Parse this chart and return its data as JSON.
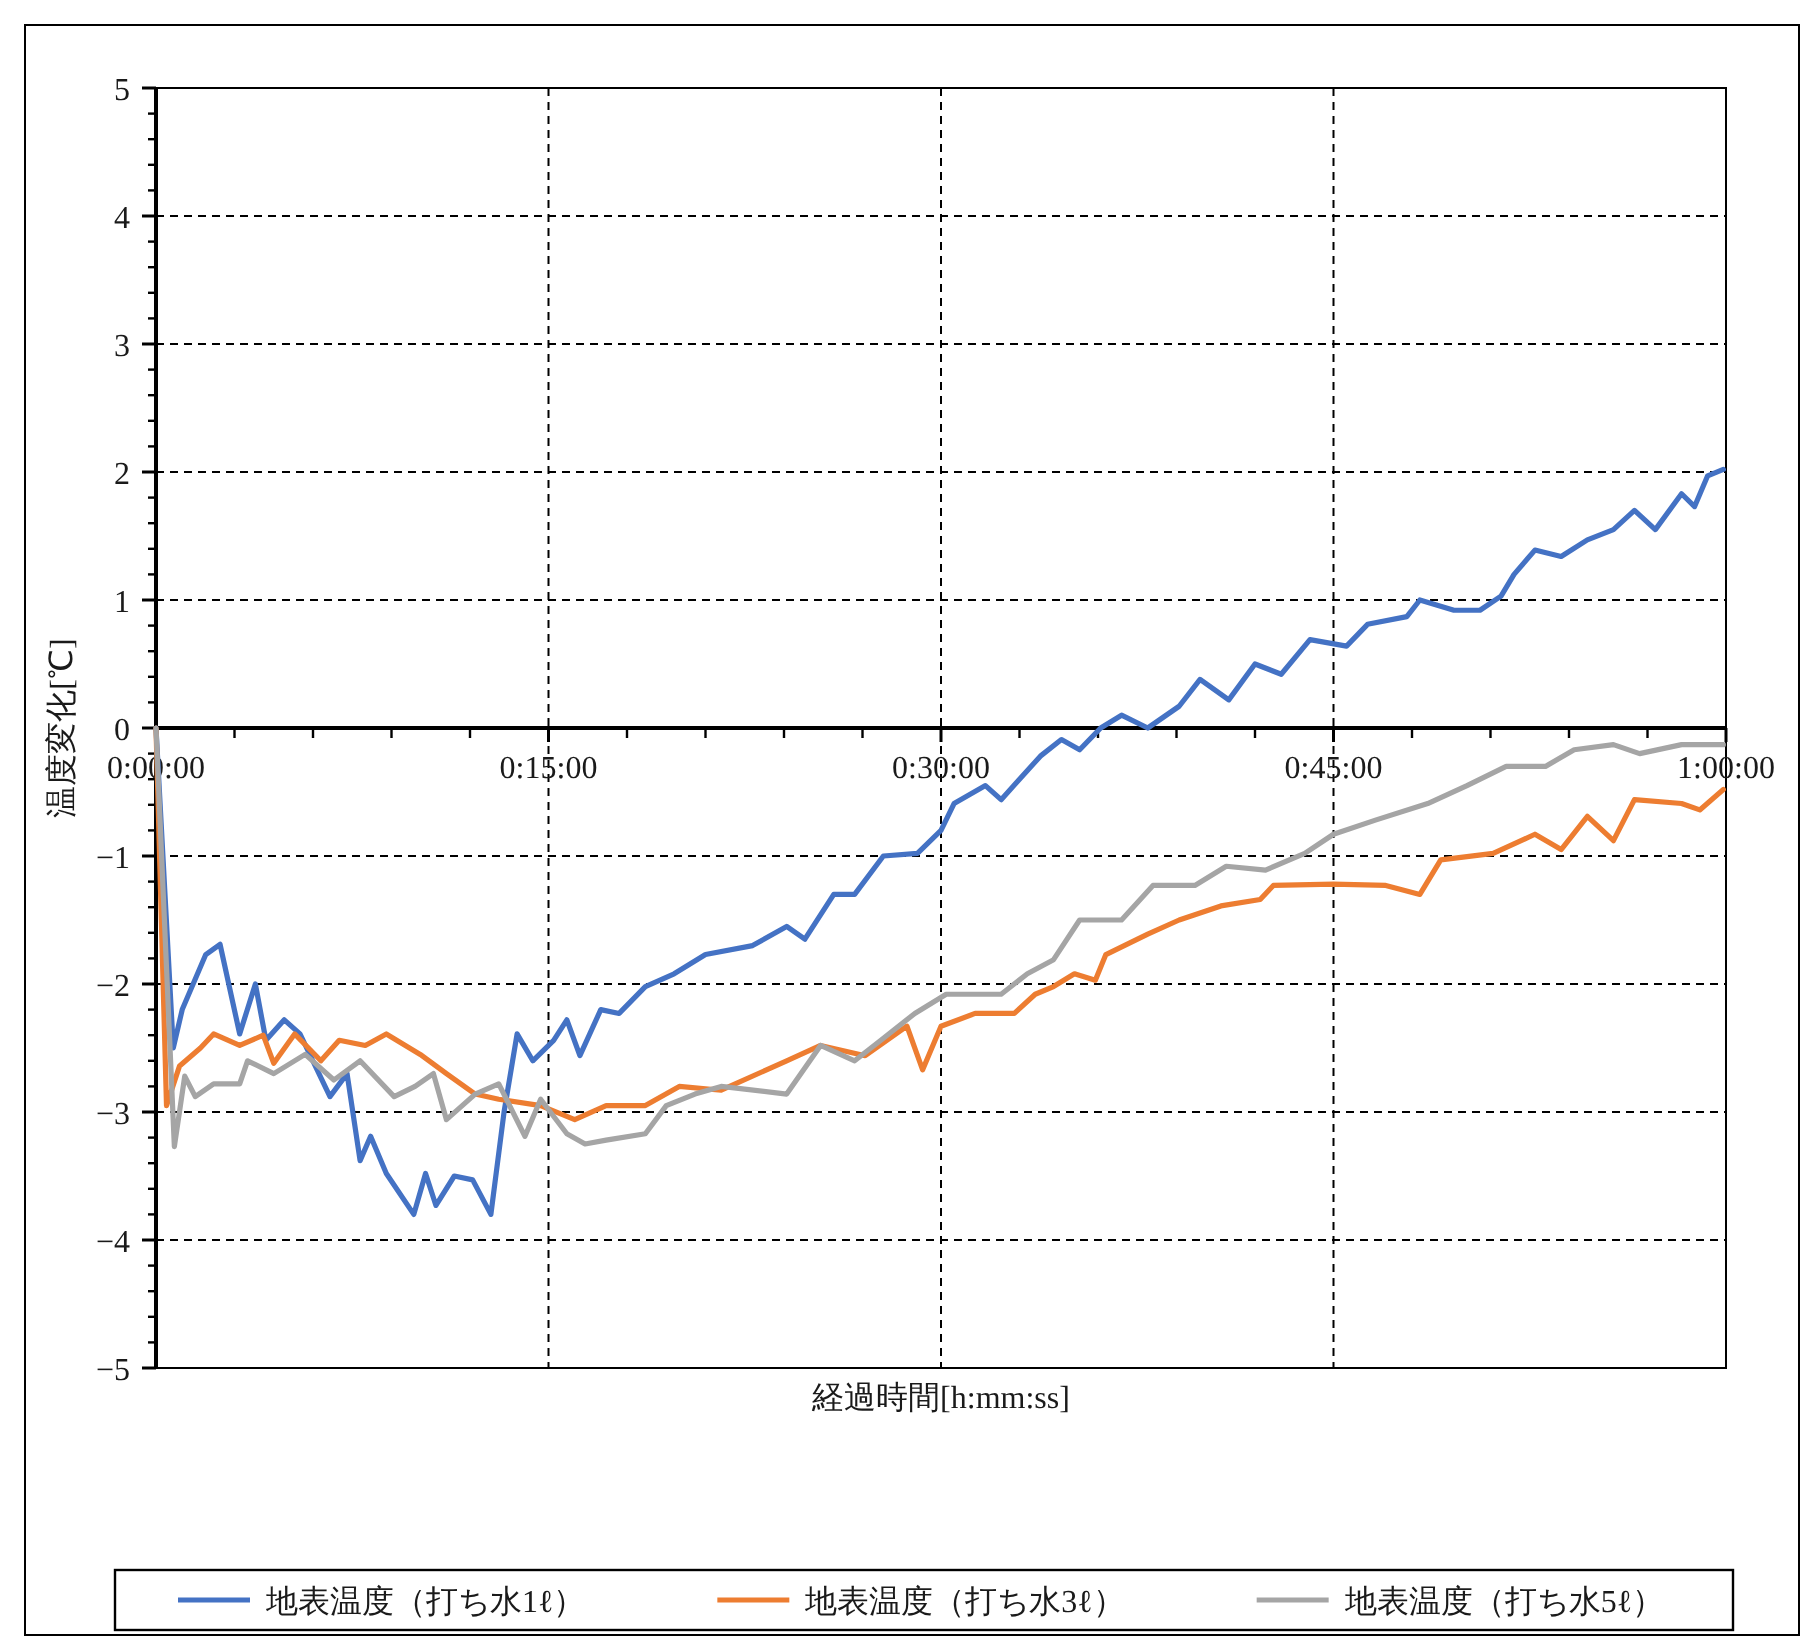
{
  "chart_data": {
    "type": "line",
    "xlabel": "経過時間[h:mm:ss]",
    "ylabel": "温度変化[℃]",
    "xlim": [
      0,
      1
    ],
    "ylim": [
      -5,
      5
    ],
    "xticks": [
      {
        "value": 0,
        "label": "0:00:00"
      },
      {
        "value": 0.25,
        "label": "0:15:00"
      },
      {
        "value": 0.5,
        "label": "0:30:00"
      },
      {
        "value": 0.75,
        "label": "0:45:00"
      },
      {
        "value": 1,
        "label": "1:00:00"
      }
    ],
    "yticks": [
      -5,
      -4,
      -3,
      -2,
      -1,
      0,
      1,
      2,
      3,
      4,
      5
    ],
    "grid": true,
    "legend": "bottom",
    "series": [
      {
        "name": "地表温度（打ち水1ℓ）",
        "color": "#4472c4",
        "x": [
          0,
          0.011,
          0.0167,
          0.0317,
          0.0408,
          0.0533,
          0.0633,
          0.07,
          0.0817,
          0.0917,
          0.1108,
          0.1217,
          0.13,
          0.1367,
          0.1467,
          0.1642,
          0.1717,
          0.1783,
          0.19,
          0.2017,
          0.2133,
          0.2217,
          0.23,
          0.24,
          0.2533,
          0.2617,
          0.27,
          0.2833,
          0.295,
          0.3117,
          0.33,
          0.35,
          0.38,
          0.4017,
          0.4133,
          0.4317,
          0.445,
          0.4633,
          0.485,
          0.5,
          0.5083,
          0.5283,
          0.5383,
          0.5633,
          0.5767,
          0.5883,
          0.6017,
          0.615,
          0.6317,
          0.6517,
          0.665,
          0.6833,
          0.7,
          0.7167,
          0.735,
          0.7583,
          0.7717,
          0.7967,
          0.805,
          0.8267,
          0.8433,
          0.8567,
          0.865,
          0.8783,
          0.895,
          0.9117,
          0.9283,
          0.9417,
          0.955,
          0.9717,
          0.98,
          0.9883,
          0.9983
        ],
        "values": [
          0,
          -2.5,
          -2.2,
          -1.77,
          -1.69,
          -2.39,
          -2.0,
          -2.44,
          -2.28,
          -2.39,
          -2.88,
          -2.7,
          -3.38,
          -3.19,
          -3.48,
          -3.8,
          -3.48,
          -3.73,
          -3.5,
          -3.53,
          -3.8,
          -3.0,
          -2.39,
          -2.6,
          -2.44,
          -2.28,
          -2.56,
          -2.2,
          -2.23,
          -2.02,
          -1.92,
          -1.77,
          -1.7,
          -1.55,
          -1.65,
          -1.3,
          -1.3,
          -1.0,
          -0.98,
          -0.8,
          -0.59,
          -0.45,
          -0.56,
          -0.22,
          -0.09,
          -0.17,
          0,
          0.1,
          0,
          0.17,
          0.38,
          0.22,
          0.5,
          0.42,
          0.69,
          0.64,
          0.81,
          0.87,
          1.0,
          0.92,
          0.92,
          1.03,
          1.2,
          1.39,
          1.34,
          1.47,
          1.55,
          1.7,
          1.55,
          1.83,
          1.73,
          1.97,
          2.02
        ]
      },
      {
        "name": "地表温度（打ち水3ℓ）",
        "color": "#ed7d31",
        "x": [
          0,
          0.0067,
          0.015,
          0.0283,
          0.0367,
          0.0533,
          0.0683,
          0.075,
          0.0883,
          0.105,
          0.1167,
          0.1333,
          0.1467,
          0.1683,
          0.185,
          0.2033,
          0.2183,
          0.245,
          0.2667,
          0.2867,
          0.3117,
          0.3333,
          0.36,
          0.4017,
          0.4233,
          0.4517,
          0.4783,
          0.4883,
          0.5,
          0.5217,
          0.5467,
          0.56,
          0.5717,
          0.585,
          0.5983,
          0.605,
          0.6317,
          0.6517,
          0.6783,
          0.7033,
          0.7117,
          0.75,
          0.7833,
          0.805,
          0.8183,
          0.8517,
          0.8783,
          0.895,
          0.9117,
          0.9283,
          0.9417,
          0.9717,
          0.9833,
          0.9983
        ],
        "values": [
          0,
          -2.95,
          -2.64,
          -2.5,
          -2.39,
          -2.48,
          -2.4,
          -2.62,
          -2.39,
          -2.6,
          -2.44,
          -2.48,
          -2.39,
          -2.55,
          -2.7,
          -2.86,
          -2.9,
          -2.95,
          -3.06,
          -2.95,
          -2.95,
          -2.8,
          -2.83,
          -2.6,
          -2.48,
          -2.56,
          -2.33,
          -2.67,
          -2.33,
          -2.23,
          -2.23,
          -2.08,
          -2.02,
          -1.92,
          -1.97,
          -1.77,
          -1.61,
          -1.5,
          -1.39,
          -1.34,
          -1.23,
          -1.22,
          -1.23,
          -1.3,
          -1.03,
          -0.98,
          -0.83,
          -0.95,
          -0.69,
          -0.88,
          -0.56,
          -0.59,
          -0.64,
          -0.48
        ]
      },
      {
        "name": "地表温度（打ち水5ℓ）",
        "color": "#a5a5a5",
        "x": [
          0,
          0.0117,
          0.0183,
          0.025,
          0.0367,
          0.0533,
          0.0583,
          0.075,
          0.095,
          0.1133,
          0.13,
          0.1517,
          0.165,
          0.1767,
          0.185,
          0.2033,
          0.2183,
          0.235,
          0.245,
          0.2617,
          0.2733,
          0.2867,
          0.3117,
          0.325,
          0.3433,
          0.36,
          0.4017,
          0.4233,
          0.445,
          0.4617,
          0.4833,
          0.5033,
          0.5383,
          0.555,
          0.5717,
          0.5883,
          0.615,
          0.635,
          0.6617,
          0.6817,
          0.7067,
          0.7317,
          0.75,
          0.7767,
          0.81,
          0.835,
          0.86,
          0.885,
          0.9033,
          0.9283,
          0.945,
          0.9717,
          0.9983
        ],
        "values": [
          0,
          -3.27,
          -2.72,
          -2.88,
          -2.78,
          -2.78,
          -2.6,
          -2.7,
          -2.55,
          -2.75,
          -2.6,
          -2.88,
          -2.8,
          -2.7,
          -3.06,
          -2.86,
          -2.78,
          -3.19,
          -2.9,
          -3.17,
          -3.25,
          -3.22,
          -3.17,
          -2.95,
          -2.86,
          -2.8,
          -2.86,
          -2.48,
          -2.6,
          -2.44,
          -2.23,
          -2.08,
          -2.08,
          -1.92,
          -1.81,
          -1.5,
          -1.5,
          -1.23,
          -1.23,
          -1.08,
          -1.11,
          -0.98,
          -0.83,
          -0.72,
          -0.59,
          -0.45,
          -0.3,
          -0.3,
          -0.17,
          -0.13,
          -0.2,
          -0.13,
          -0.13
        ]
      }
    ]
  }
}
